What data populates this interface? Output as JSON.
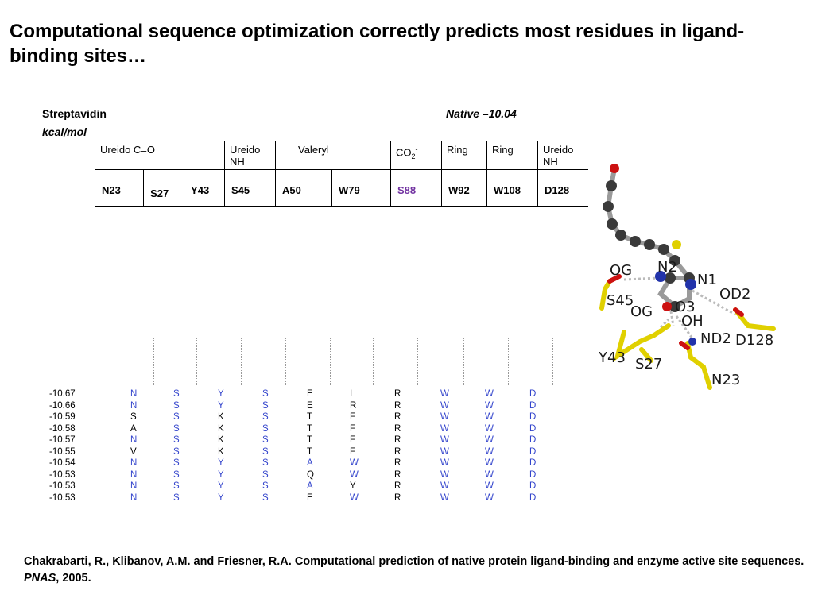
{
  "title": "Computational sequence optimization correctly predicts most residues in ligand-binding sites…",
  "protein": "Streptavidin",
  "native_label": "Native –10.04",
  "unit": "kcal/mol",
  "header_groups": [
    {
      "label": "Ureido C=O",
      "sub": ""
    },
    {
      "label": "Ureido",
      "sub": "NH"
    },
    {
      "label": "Valeryl",
      "sub": ""
    },
    {
      "label": "CO",
      "sub": ""
    },
    {
      "label": "Ring",
      "sub": ""
    },
    {
      "label": "Ring",
      "sub": ""
    },
    {
      "label": "Ureido",
      "sub": "NH"
    }
  ],
  "co2_subscript": "2",
  "co2_superscript": "-",
  "residues": [
    "N23",
    "S27",
    "Y43",
    "S45",
    "A50",
    "W79",
    "S88",
    "W92",
    "W108",
    "D128"
  ],
  "sequences": [
    {
      "energy": "-10.67",
      "res": [
        "N",
        "S",
        "Y",
        "S",
        "E",
        "I",
        "R",
        "W",
        "W",
        "D"
      ],
      "match": [
        1,
        1,
        1,
        1,
        0,
        0,
        0,
        1,
        1,
        1
      ]
    },
    {
      "energy": "-10.66",
      "res": [
        "N",
        "S",
        "Y",
        "S",
        "E",
        "R",
        "R",
        "W",
        "W",
        "D"
      ],
      "match": [
        1,
        1,
        1,
        1,
        0,
        0,
        0,
        1,
        1,
        1
      ]
    },
    {
      "energy": "-10.59",
      "res": [
        "S",
        "S",
        "K",
        "S",
        "T",
        "F",
        "R",
        "W",
        "W",
        "D"
      ],
      "match": [
        0,
        1,
        0,
        1,
        0,
        0,
        0,
        1,
        1,
        1
      ]
    },
    {
      "energy": "-10.58",
      "res": [
        "A",
        "S",
        "K",
        "S",
        "T",
        "F",
        "R",
        "W",
        "W",
        "D"
      ],
      "match": [
        0,
        1,
        0,
        1,
        0,
        0,
        0,
        1,
        1,
        1
      ]
    },
    {
      "energy": "-10.57",
      "res": [
        "N",
        "S",
        "K",
        "S",
        "T",
        "F",
        "R",
        "W",
        "W",
        "D"
      ],
      "match": [
        1,
        1,
        0,
        1,
        0,
        0,
        0,
        1,
        1,
        1
      ]
    },
    {
      "energy": "-10.55",
      "res": [
        "V",
        "S",
        "K",
        "S",
        "T",
        "F",
        "R",
        "W",
        "W",
        "D"
      ],
      "match": [
        0,
        1,
        0,
        1,
        0,
        0,
        0,
        1,
        1,
        1
      ]
    },
    {
      "energy": "-10.54",
      "res": [
        "N",
        "S",
        "Y",
        "S",
        "A",
        "W",
        "R",
        "W",
        "W",
        "D"
      ],
      "match": [
        1,
        1,
        1,
        1,
        1,
        1,
        0,
        1,
        1,
        1
      ]
    },
    {
      "energy": "-10.53",
      "res": [
        "N",
        "S",
        "Y",
        "S",
        "Q",
        "W",
        "R",
        "W",
        "W",
        "D"
      ],
      "match": [
        1,
        1,
        1,
        1,
        0,
        1,
        0,
        1,
        1,
        1
      ]
    },
    {
      "energy": "-10.53",
      "res": [
        "N",
        "S",
        "Y",
        "S",
        "A",
        "Y",
        "R",
        "W",
        "W",
        "D"
      ],
      "match": [
        1,
        1,
        1,
        1,
        1,
        0,
        0,
        1,
        1,
        1
      ]
    },
    {
      "energy": "-10.53",
      "res": [
        "N",
        "S",
        "Y",
        "S",
        "E",
        "W",
        "R",
        "W",
        "W",
        "D"
      ],
      "match": [
        1,
        1,
        1,
        1,
        0,
        1,
        0,
        1,
        1,
        1
      ]
    }
  ],
  "molecule_labels": [
    "OG",
    "N2",
    "N1",
    "OD2",
    "S45",
    "OG",
    "O3",
    "OH",
    "ND2",
    "D128",
    "Y43",
    "S27",
    "N23"
  ],
  "citation": {
    "text": "Chakrabarti, R., Klibanov, A.M. and Friesner, R.A.  Computational prediction of native protein ligand-binding and enzyme active site sequences.  ",
    "journal": "PNAS",
    "year": ", 2005."
  },
  "colors": {
    "match": "#3344cc",
    "highlight": "#7030a0",
    "carbon": "#3a3a3a",
    "bond": "#9a9a9a",
    "nitrogen": "#2233aa",
    "oxygen": "#cc1111",
    "sidechain": "#e0d000"
  }
}
